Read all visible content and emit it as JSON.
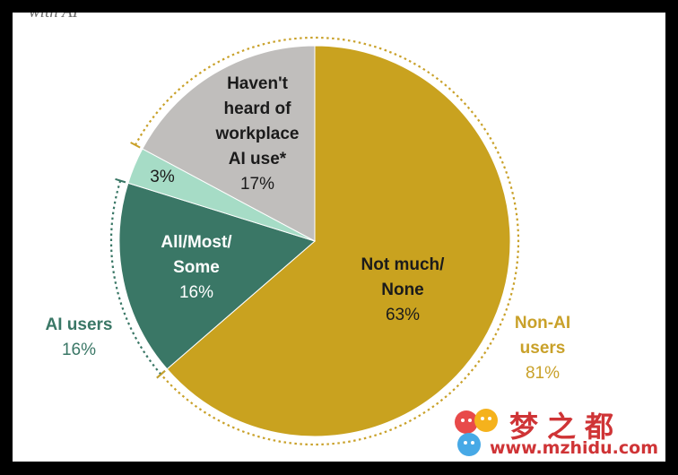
{
  "header_fragment": "with AI",
  "chart_data": {
    "type": "pie",
    "slices": [
      {
        "label_lines": [
          "Not much/",
          "None"
        ],
        "value": 63,
        "value_label": "63%",
        "color": "#c9a21f"
      },
      {
        "label_lines": [
          "All/Most/",
          "Some"
        ],
        "value": 16,
        "value_label": "16%",
        "color": "#3a7766"
      },
      {
        "label_lines": [],
        "value": 3,
        "value_label": "3%",
        "color": "#a6dcc6"
      },
      {
        "label_lines": [
          "Haven't",
          "heard of",
          "workplace",
          "AI use*"
        ],
        "value": 17,
        "value_label": "17%",
        "color": "#c0bebc"
      }
    ],
    "groups": [
      {
        "name": "AI users",
        "value_label": "16%",
        "color": "#3a7766"
      },
      {
        "name": "Non-AI users",
        "name_lines": [
          "Non-AI",
          "users"
        ],
        "value_label": "81%",
        "color": "#c9a12a"
      }
    ]
  },
  "watermark": {
    "chinese": "梦之都",
    "url": "www.mzhidu.com"
  }
}
